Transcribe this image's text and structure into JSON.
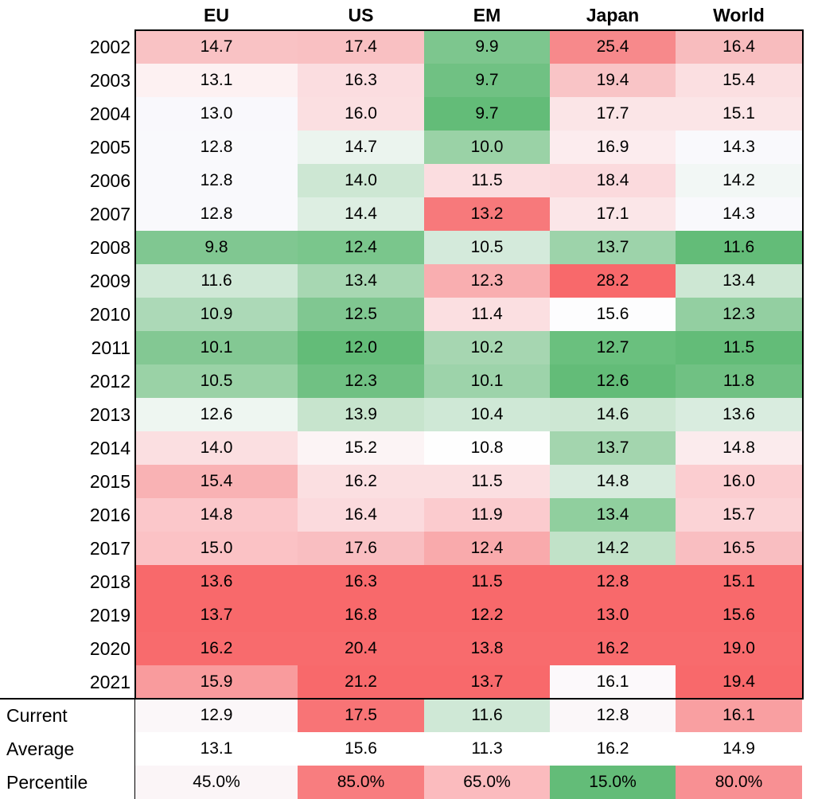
{
  "chart_data": {
    "type": "heatmap",
    "columns": [
      "EU",
      "US",
      "EM",
      "Japan",
      "World"
    ],
    "rows": [
      {
        "label": "2002",
        "values": [
          "14.7",
          "17.4",
          "9.9",
          "25.4",
          "16.4"
        ],
        "colors": [
          "#f9c2c4",
          "#f9c0c2",
          "#7dc68e",
          "#f7898b",
          "#f8bcbe"
        ]
      },
      {
        "label": "2003",
        "values": [
          "13.1",
          "16.3",
          "9.7",
          "19.4",
          "15.4"
        ],
        "colors": [
          "#fdf1f2",
          "#fbdde0",
          "#70c183",
          "#f9c4c6",
          "#fbdfe1"
        ]
      },
      {
        "label": "2004",
        "values": [
          "13.0",
          "16.0",
          "9.7",
          "17.7",
          "15.1"
        ],
        "colors": [
          "#f9f8fc",
          "#fbdfe1",
          "#63bc78",
          "#fbe5e7",
          "#fbe5e7"
        ]
      },
      {
        "label": "2005",
        "values": [
          "12.8",
          "14.7",
          "10.0",
          "16.9",
          "14.3"
        ],
        "colors": [
          "#f9f9fc",
          "#ebf4ee",
          "#9ad2a6",
          "#fcecee",
          "#f9f9fc"
        ]
      },
      {
        "label": "2006",
        "values": [
          "12.8",
          "14.0",
          "11.5",
          "18.4",
          "14.2"
        ],
        "colors": [
          "#f9f9fc",
          "#cde7d3",
          "#fbdde0",
          "#fbdadd",
          "#f2f7f5"
        ]
      },
      {
        "label": "2007",
        "values": [
          "12.8",
          "14.4",
          "13.2",
          "17.1",
          "14.3"
        ],
        "colors": [
          "#f9f9fc",
          "#ddeee2",
          "#f7797b",
          "#fbe6e8",
          "#f9f9fc"
        ]
      },
      {
        "label": "2008",
        "values": [
          "9.8",
          "12.4",
          "10.5",
          "13.7",
          "11.6"
        ],
        "colors": [
          "#80c791",
          "#7ac68c",
          "#d4eadb",
          "#9dd3aa",
          "#63bc78"
        ]
      },
      {
        "label": "2009",
        "values": [
          "11.6",
          "13.4",
          "12.3",
          "28.2",
          "13.4"
        ],
        "colors": [
          "#cfe8d6",
          "#a7d7b2",
          "#f9aeb0",
          "#f8696b",
          "#cde7d3"
        ]
      },
      {
        "label": "2010",
        "values": [
          "10.9",
          "12.5",
          "11.4",
          "15.6",
          "12.3"
        ],
        "colors": [
          "#acd9b7",
          "#80c791",
          "#fbdfe1",
          "#fdfdfe",
          "#93cfa1"
        ]
      },
      {
        "label": "2011",
        "values": [
          "10.1",
          "12.0",
          "10.2",
          "12.7",
          "11.5"
        ],
        "colors": [
          "#83c893",
          "#63bc78",
          "#a6d6b1",
          "#6ac07e",
          "#63bc78"
        ]
      },
      {
        "label": "2012",
        "values": [
          "10.5",
          "12.3",
          "10.1",
          "12.6",
          "11.8"
        ],
        "colors": [
          "#9ad2a6",
          "#70c183",
          "#9dd3aa",
          "#63bc78",
          "#70c183"
        ]
      },
      {
        "label": "2013",
        "values": [
          "12.6",
          "13.9",
          "10.4",
          "14.6",
          "13.6"
        ],
        "colors": [
          "#eef6f1",
          "#c7e4cd",
          "#cfe8d6",
          "#cde7d3",
          "#d9ecdf"
        ]
      },
      {
        "label": "2014",
        "values": [
          "14.0",
          "15.2",
          "10.8",
          "13.7",
          "14.8"
        ],
        "colors": [
          "#fbdfe1",
          "#fcf4f5",
          "#fefefe",
          "#a3d5ae",
          "#fbebed"
        ]
      },
      {
        "label": "2015",
        "values": [
          "15.4",
          "16.2",
          "11.5",
          "14.8",
          "16.0"
        ],
        "colors": [
          "#f9b2b4",
          "#fbdfe1",
          "#fbdfe1",
          "#d7ebdd",
          "#fbcdd0"
        ]
      },
      {
        "label": "2016",
        "values": [
          "14.8",
          "16.4",
          "11.9",
          "13.4",
          "15.7"
        ],
        "colors": [
          "#fbc7ca",
          "#fbdadd",
          "#fbcbce",
          "#90cf9e",
          "#fbd3d6"
        ]
      },
      {
        "label": "2017",
        "values": [
          "15.0",
          "17.6",
          "12.4",
          "14.2",
          "16.5"
        ],
        "colors": [
          "#fbc2c5",
          "#f9bec1",
          "#f9aaac",
          "#c1e2c8",
          "#f9bec1"
        ]
      },
      {
        "label": "2018",
        "values": [
          "13.6",
          "16.3",
          "11.5",
          "12.8",
          "15.1"
        ],
        "colors": [
          "#f8696b",
          "#f8696b",
          "#f8696b",
          "#f8696b",
          "#f8696b"
        ]
      },
      {
        "label": "2019",
        "values": [
          "13.7",
          "16.8",
          "12.2",
          "13.0",
          "15.6"
        ],
        "colors": [
          "#f8696b",
          "#f8696b",
          "#f8696b",
          "#f8696b",
          "#f8696b"
        ]
      },
      {
        "label": "2020",
        "values": [
          "16.2",
          "20.4",
          "13.8",
          "16.2",
          "19.0"
        ],
        "colors": [
          "#f86b6d",
          "#f86b6d",
          "#f86b6d",
          "#f86b6d",
          "#f86b6d"
        ]
      },
      {
        "label": "2021",
        "values": [
          "15.9",
          "21.2",
          "13.7",
          "16.1",
          "19.4"
        ],
        "colors": [
          "#f99b9d",
          "#f8696b",
          "#f8696b",
          "#fcf9fb",
          "#f8696b"
        ]
      }
    ],
    "summary_rows": [
      {
        "label": "Current",
        "values": [
          "12.9",
          "17.5",
          "11.6",
          "12.8",
          "16.1"
        ],
        "colors": [
          "#fbf7f9",
          "#f87476",
          "#cfe8d6",
          "#fbf7f9",
          "#f99fa1"
        ]
      },
      {
        "label": "Average",
        "values": [
          "13.1",
          "15.6",
          "11.3",
          "16.2",
          "14.9"
        ],
        "colors": [
          "#ffffff",
          "#ffffff",
          "#ffffff",
          "#ffffff",
          "#ffffff"
        ]
      },
      {
        "label": "Percentile",
        "values": [
          "45.0%",
          "85.0%",
          "65.0%",
          "15.0%",
          "80.0%"
        ],
        "colors": [
          "#fbf5f7",
          "#f87d7f",
          "#fbbbbe",
          "#63bc78",
          "#f89093"
        ]
      }
    ]
  }
}
